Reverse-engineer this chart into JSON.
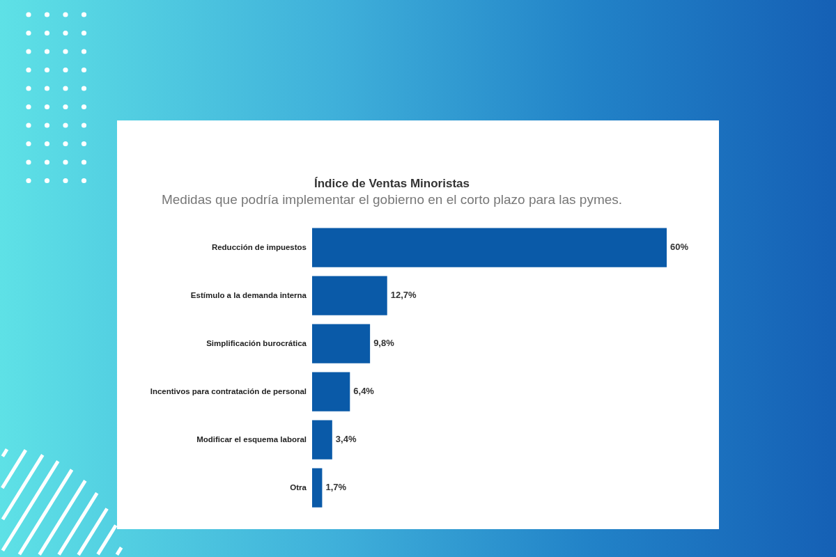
{
  "chart_data": {
    "type": "bar",
    "orientation": "horizontal",
    "title": "Índice de Ventas Minoristas",
    "subtitle": "Medidas que podría implementar el gobierno en el corto plazo para las pymes.",
    "categories": [
      "Reducción de impuestos",
      "Estímulo a la demanda interna",
      "Simplificación burocrática",
      "Incentivos para contratación de personal",
      "Modificar el esquema laboral",
      "Otra"
    ],
    "values": [
      60,
      12.7,
      9.8,
      6.4,
      3.4,
      1.7
    ],
    "value_labels": [
      "60%",
      "12,7%",
      "9,8%",
      "6,4%",
      "3,4%",
      "1,7%"
    ],
    "color": "#0a5aa8",
    "tick_labels": "y"
  }
}
